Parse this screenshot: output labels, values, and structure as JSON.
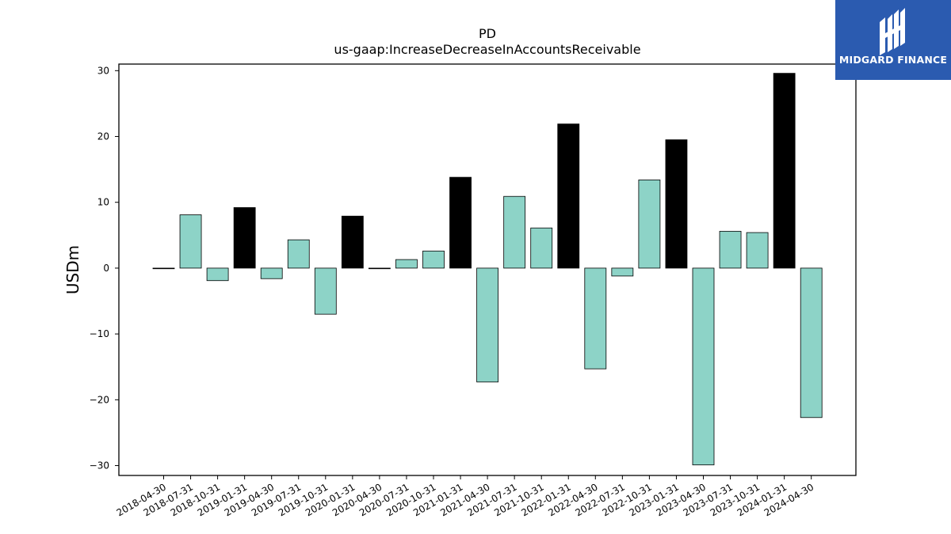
{
  "brand": {
    "name": "MIDGARD FINANCE",
    "colors": {
      "background": "#2b5bb0",
      "text": "#ffffff"
    }
  },
  "chart_data": {
    "type": "bar",
    "title": "PD",
    "subtitle": "us-gaap:IncreaseDecreaseInAccountsReceivable",
    "xlabel": "",
    "ylabel": "USDm",
    "ylim": [
      -31.5,
      31
    ],
    "yticks": [
      -30,
      -20,
      -10,
      0,
      10,
      20,
      30
    ],
    "grid": false,
    "colors": {
      "quarterly": "#8dd3c7",
      "annual": "#000000",
      "edge": "#000000"
    },
    "categories": [
      "2018-04-30",
      "2018-07-31",
      "2018-10-31",
      "2019-01-31",
      "2019-04-30",
      "2019-07-31",
      "2019-10-31",
      "2020-01-31",
      "2020-04-30",
      "2020-07-31",
      "2020-10-31",
      "2021-01-31",
      "2021-04-30",
      "2021-07-31",
      "2021-10-31",
      "2022-01-31",
      "2022-04-30",
      "2022-07-31",
      "2022-10-31",
      "2023-01-31",
      "2023-04-30",
      "2023-07-31",
      "2023-10-31",
      "2024-01-31",
      "2024-04-30"
    ],
    "values": [
      0.0,
      8.1,
      -1.9,
      9.2,
      -1.6,
      4.3,
      -7.0,
      7.9,
      0.0,
      1.3,
      2.6,
      13.8,
      -17.3,
      10.9,
      6.1,
      21.9,
      -15.3,
      -1.2,
      13.4,
      19.5,
      -29.9,
      5.6,
      5.4,
      29.6,
      -22.7
    ],
    "bar_kind": [
      "quarterly",
      "quarterly",
      "quarterly",
      "annual",
      "quarterly",
      "quarterly",
      "quarterly",
      "annual",
      "quarterly",
      "quarterly",
      "quarterly",
      "annual",
      "quarterly",
      "quarterly",
      "quarterly",
      "annual",
      "quarterly",
      "quarterly",
      "quarterly",
      "annual",
      "quarterly",
      "quarterly",
      "quarterly",
      "annual",
      "quarterly"
    ]
  }
}
